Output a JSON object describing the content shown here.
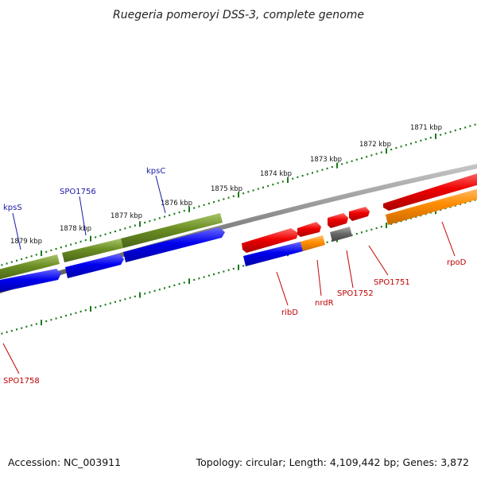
{
  "title": "Ruegeria pomeroyi DSS-3, complete genome",
  "footer": {
    "accession": "Accession: NC_003911",
    "summary": "Topology: circular; Length: 4,109,442 bp; Genes: 3,872"
  },
  "kbp_labels": [
    "1871 kbp",
    "1872 kbp",
    "1873 kbp",
    "1874 kbp",
    "1875 kbp",
    "1876 kbp",
    "1877 kbp",
    "1878 kbp",
    "1879 kbp"
  ],
  "gene_labels": {
    "kpsS": "kpsS",
    "SPO1756": "SPO1756",
    "kpsC": "kpsC",
    "SPO1758": "SPO1758",
    "ribD": "ribD",
    "nrdR": "nrdR",
    "SPO1752": "SPO1752",
    "SPO1751": "SPO1751",
    "rpoD": "rpoD"
  },
  "colors": {
    "backbone": "#808080",
    "olive": "#6b8e23",
    "blue": "#0000ee",
    "red": "#ee0000",
    "orange": "#ff8c00",
    "gray_gene": "#666666",
    "tick": "#1a7a1a",
    "label_blue": "#1a1aa8",
    "label_red": "#c00000"
  }
}
